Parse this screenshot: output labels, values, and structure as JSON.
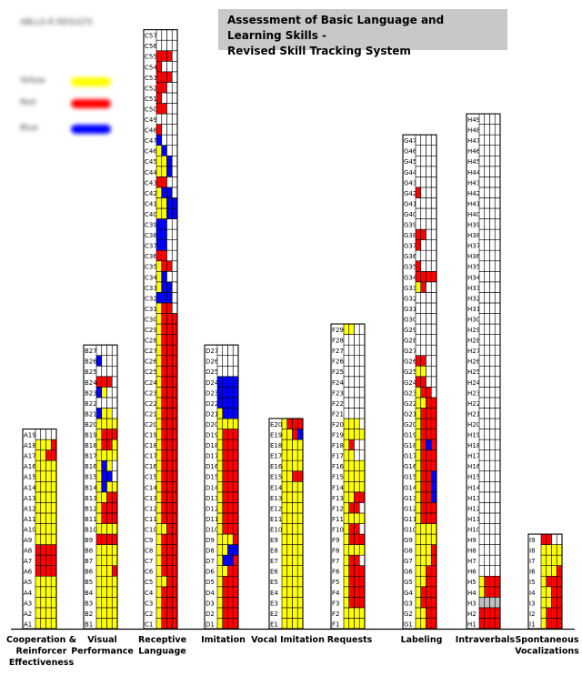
{
  "title": {
    "line1": "Assessment of Basic Language and Learning Skills -",
    "line2": "Revised Skill Tracking System"
  },
  "legend": {
    "rows": [
      {
        "text": "ABLLS-R RESULTS",
        "color": ""
      },
      {
        "text": "",
        "color": ""
      },
      {
        "text": "Yellow",
        "color": "#ffff00"
      },
      {
        "text": "Red",
        "color": "#ff0000"
      },
      {
        "text": "Blue",
        "color": "#0000ff"
      }
    ]
  },
  "colors": {
    "Y": "#ffff00",
    "R": "#ff0000",
    "B": "#0000ff",
    "G": "#c0c0c0",
    "W": "#ffffff"
  },
  "chart_data": {
    "type": "table",
    "encoding": "Each row string lists the four cells left to right: Y=yellow, R=red, B=blue, G=grey, W=white (empty)",
    "columns": [
      {
        "key": "A",
        "name": "Cooperation &\nReinforcer\nEffectiveness",
        "rows": [
          "YYYY",
          "YYYY",
          "YYYY",
          "YYYY",
          "YYYY",
          "RRRR",
          "RRRR",
          "RRRR",
          "YYYY",
          "YYYY",
          "YYYY",
          "YYYY",
          "YYYY",
          "YYYY",
          "YYYY",
          "YYYY",
          "YYRR",
          "YYYR",
          "WWWW"
        ]
      },
      {
        "key": "B",
        "name": "Visual\nPerformance",
        "rows": [
          "YYYY",
          "YYYY",
          "YYYY",
          "YYYY",
          "YYYY",
          "YYYR",
          "YYYY",
          "YYYY",
          "RRRR",
          "YYYY",
          "YRRR",
          "YRRR",
          "YYRR",
          "YBYY",
          "YBBW",
          "YBYW",
          "YYYY",
          "YRRY",
          "YRRR",
          "YYYY",
          "BYYW",
          "WWWW",
          "BYWW",
          "RRRW",
          "WWWW",
          "BWWW",
          "WWWW"
        ]
      },
      {
        "key": "C",
        "name": "Receptive\nLanguage",
        "rows": [
          "YRRR",
          "YRRR",
          "YRRR",
          "YRRR",
          "YYRR",
          "YRRR",
          "YRRR",
          "YRRR",
          "YRRR",
          "YYRR",
          "YRRR",
          "YRRR",
          "YRRR",
          "YRRR",
          "YRRR",
          "YRRR",
          "YRRR",
          "YRRR",
          "YRRR",
          "YRRR",
          "YRRR",
          "YRRR",
          "YRRR",
          "YRRR",
          "YRRR",
          "YRRR",
          "YRRR",
          "YRRR",
          "YRRR",
          "YRRR",
          "YRRW",
          "BBBW",
          "YBBW",
          "YBWW",
          "YRRW",
          "RRWW",
          "BBWW",
          "BBWW",
          "BBWW",
          "YYBB",
          "YYBB",
          "YBBW",
          "RRWW",
          "YYBW",
          "YYBW",
          "YBWW",
          "BWWW",
          "RWWW",
          "WWWW",
          "RRWW",
          "RWWW",
          "RRWW",
          "RRRW",
          "RWWW",
          "RRRW",
          "WWWW",
          "WWWW"
        ]
      },
      {
        "key": "D",
        "name": "Imitation",
        "rows": [
          "YRRR",
          "YRRR",
          "YRRR",
          "YRRR",
          "YRRR",
          "YYRR",
          "YBBR",
          "YYBB",
          "YYYR",
          "YRRR",
          "YRRR",
          "YRRR",
          "YRRR",
          "YRRR",
          "YRRR",
          "YRRR",
          "YRRR",
          "YRRR",
          "YRRR",
          "YYYY",
          "YBBB",
          "BBBB",
          "BBBB",
          "BBBB",
          "WWWW",
          "WWWW",
          "WWWW"
        ]
      },
      {
        "key": "E",
        "name": "Vocal Imitation",
        "rows": [
          "YYYY",
          "YYYY",
          "YYYY",
          "YYYY",
          "YYYY",
          "YYYY",
          "YYYY",
          "YYYY",
          "YYYY",
          "YYYY",
          "YYYY",
          "YYYY",
          "YYYY",
          "YYYY",
          "YYRR",
          "YYYY",
          "YYYY",
          "YYYY",
          "YYRB",
          "YRRR"
        ]
      },
      {
        "key": "F",
        "name": "Requests",
        "rows": [
          "YYYY",
          "YYYY",
          "YRRR",
          "YRRR",
          "YRRR",
          "YRRR",
          "YRRW",
          "YYYY",
          "YRRR",
          "YRRW",
          "YYYY",
          "YRRW",
          "YYRR",
          "YYYY",
          "YYYY",
          "YYYY",
          "YYWW",
          "YRWW",
          "YYYY",
          "YYYW",
          "WWWW",
          "WWWW",
          "WWWW",
          "WWWW",
          "WWWW",
          "WWWW",
          "WWWW",
          "WWWW",
          "YYWW"
        ]
      },
      {
        "key": "G",
        "name": "Labeling",
        "rows": [
          "YYRR",
          "YYRR",
          "YRRR",
          "YRRR",
          "YYRR",
          "YYRR",
          "YYYR",
          "YYYR",
          "YYYY",
          "YYYY",
          "YRRR",
          "YRRR",
          "YRRB",
          "YRRB",
          "YRRB",
          "YRRR",
          "YRRR",
          "YRBR",
          "YRRR",
          "YRRR",
          "YRRR",
          "YYRR",
          "YRRW",
          "RRWW",
          "YYWW",
          "RRWW",
          "WWWW",
          "WWWW",
          "WWWW",
          "WWWW",
          "WWWW",
          "WWWW",
          "YRWW",
          "RRRR",
          "RWWW",
          "WWWW",
          "RWWW",
          "RRWW",
          "WWWW",
          "WWWW",
          "WWWW",
          "RWWW",
          "WWWW",
          "WWWW",
          "WWWW",
          "WWWW",
          "WWWW"
        ]
      },
      {
        "key": "H",
        "name": "Intraverbals",
        "rows": [
          "RRRR",
          "RRRR",
          "GGGG",
          "YRRR",
          "YRRR",
          "WWWW",
          "WWWW",
          "WWWW",
          "WWWW",
          "WWWW",
          "WWWW",
          "WWWW",
          "WWWW",
          "WWWW",
          "WWWW",
          "WWWW",
          "WWWW",
          "WWWW",
          "WWWW",
          "WWWW",
          "WWWW",
          "WWWW",
          "WWWW",
          "WWWW",
          "WWWW",
          "WWWW",
          "WWWW",
          "WWWW",
          "WWWW",
          "WWWW",
          "WWWW",
          "WWWW",
          "WWWW",
          "WWWW",
          "WWWW",
          "WWWW",
          "WWWW",
          "WWWW",
          "WWWW",
          "WWWW",
          "WWWW",
          "WWWW",
          "WWWW",
          "WWWW",
          "WWWW",
          "WWWW",
          "WWWW",
          "WWWW",
          "WWWW"
        ]
      },
      {
        "key": "I",
        "name": "Spontaneous\nVocalizations",
        "rows": [
          "YRRR",
          "YRRR",
          "YYRR",
          "YYRR",
          "YRRR",
          "YYYR",
          "YYYY",
          "YYYY",
          "RRWW"
        ]
      }
    ]
  }
}
